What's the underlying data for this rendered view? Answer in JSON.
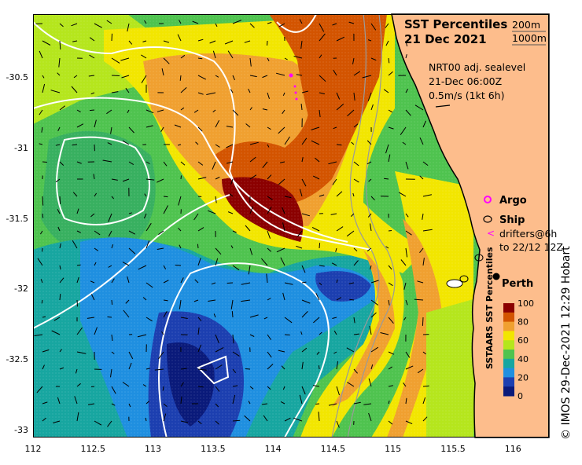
{
  "title": {
    "line1": "SST Percentiles",
    "line2": "21 Dec 2021"
  },
  "isobaths": {
    "shallow": "200m",
    "deep": "1000m"
  },
  "info": {
    "product": "NRT00 adj. sealevel",
    "time": "21-Dec 06:00Z",
    "scale": "0.5m/s (1kt 6h)"
  },
  "legend": {
    "argo": "Argo",
    "ship": "Ship",
    "drifters_line1": "drifters@6h",
    "drifters_line2": "to 22/12 12Z"
  },
  "city": "Perth",
  "axes": {
    "x_ticks": [
      "112",
      "112.5",
      "113",
      "113.5",
      "114",
      "114.5",
      "115",
      "115.5",
      "116"
    ],
    "y_ticks": [
      "-30.5",
      "-31",
      "-31.5",
      "-32",
      "-32.5",
      "-33"
    ],
    "x_range": [
      112,
      116.3
    ],
    "y_range": [
      -33.05,
      -30.05
    ]
  },
  "colorbar": {
    "label": "SSTAARS SST Percentiles",
    "ticks": [
      "100",
      "80",
      "60",
      "40",
      "20",
      "0"
    ],
    "colors": [
      "#8b0000",
      "#d35400",
      "#f0a030",
      "#f2e600",
      "#b5e61d",
      "#4fc34f",
      "#17a6a0",
      "#1f8fe0",
      "#1c3fb0",
      "#0a1a7a"
    ]
  },
  "credit": "© IMOS 29-Dec-2021 12:29 Hobart"
}
